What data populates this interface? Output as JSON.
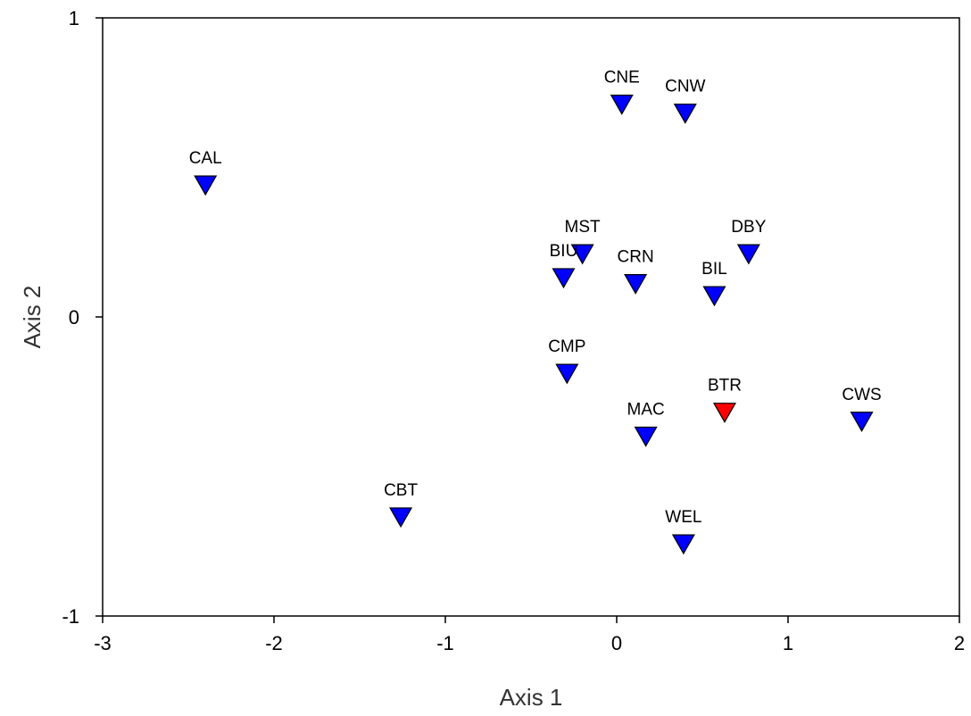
{
  "chart_data": {
    "type": "scatter",
    "title": "",
    "xlabel": "Axis 1",
    "ylabel": "Axis 2",
    "xlim": [
      -3,
      2
    ],
    "ylim": [
      -1,
      1
    ],
    "xticks": [
      "-3",
      "-2",
      "-1",
      "0",
      "1",
      "2"
    ],
    "yticks": [
      "-1",
      "0",
      "1"
    ],
    "grid": false,
    "legend": "none",
    "marker": "triangle-down",
    "default_color": "#0000ff",
    "highlight_color": "#ff0000",
    "points": [
      {
        "label": "CNE",
        "x": 0.03,
        "y": 0.71,
        "color": "#0000ff"
      },
      {
        "label": "CNW",
        "x": 0.4,
        "y": 0.68,
        "color": "#0000ff"
      },
      {
        "label": "CAL",
        "x": -2.4,
        "y": 0.44,
        "color": "#0000ff"
      },
      {
        "label": "MST",
        "x": -0.2,
        "y": 0.21,
        "color": "#0000ff"
      },
      {
        "label": "DBY",
        "x": 0.77,
        "y": 0.21,
        "color": "#0000ff"
      },
      {
        "label": "BIU",
        "x": -0.31,
        "y": 0.13,
        "color": "#0000ff"
      },
      {
        "label": "CRN",
        "x": 0.11,
        "y": 0.11,
        "color": "#0000ff"
      },
      {
        "label": "BIL",
        "x": 0.57,
        "y": 0.07,
        "color": "#0000ff"
      },
      {
        "label": "CMP",
        "x": -0.29,
        "y": -0.19,
        "color": "#0000ff"
      },
      {
        "label": "BTR",
        "x": 0.63,
        "y": -0.32,
        "color": "#ff0000"
      },
      {
        "label": "CWS",
        "x": 1.43,
        "y": -0.35,
        "color": "#0000ff"
      },
      {
        "label": "MAC",
        "x": 0.17,
        "y": -0.4,
        "color": "#0000ff"
      },
      {
        "label": "CBT",
        "x": -1.26,
        "y": -0.67,
        "color": "#0000ff"
      },
      {
        "label": "WEL",
        "x": 0.39,
        "y": -0.76,
        "color": "#0000ff"
      }
    ]
  }
}
